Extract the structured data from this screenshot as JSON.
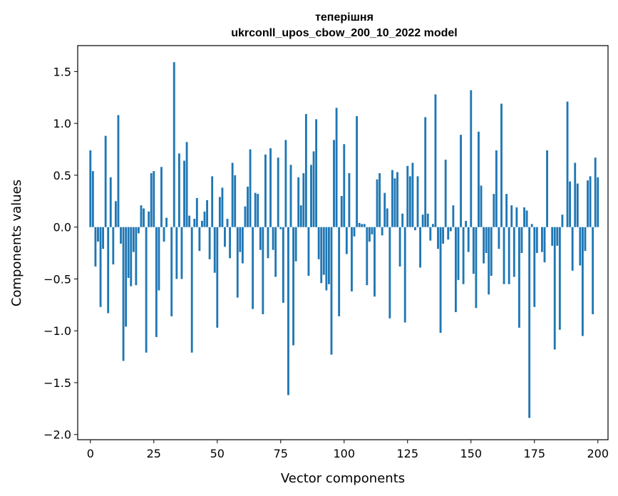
{
  "chart_data": {
    "type": "bar",
    "title": [
      "теперішня",
      "ukrconll_upos_cbow_200_10_2022 model"
    ],
    "xlabel": "Vector components",
    "ylabel": "Components values",
    "xlim": [
      -5,
      204
    ],
    "ylim": [
      -2.05,
      1.75
    ],
    "xticks": [
      0,
      25,
      50,
      75,
      100,
      125,
      150,
      175,
      200
    ],
    "yticks": [
      -2.0,
      -1.5,
      -1.0,
      -0.5,
      0.0,
      0.5,
      1.0,
      1.5
    ],
    "ytick_labels": [
      "−2.0",
      "−1.5",
      "−1.0",
      "−0.5",
      "0.0",
      "0.5",
      "1.0",
      "1.5"
    ],
    "bar_color": "#1f77b4",
    "values": [
      0.74,
      0.54,
      -0.38,
      -0.14,
      -0.77,
      -0.21,
      0.88,
      -0.83,
      0.48,
      -0.36,
      0.25,
      1.08,
      -0.16,
      -1.29,
      -0.96,
      -0.49,
      -0.57,
      -0.24,
      -0.56,
      -0.06,
      0.21,
      0.18,
      -1.21,
      0.15,
      0.52,
      0.54,
      -1.06,
      -0.61,
      0.58,
      -0.14,
      0.09,
      0.0,
      -0.86,
      1.59,
      -0.5,
      0.71,
      -0.5,
      0.64,
      0.82,
      0.11,
      -1.21,
      0.08,
      0.28,
      -0.23,
      0.06,
      0.15,
      0.26,
      -0.31,
      0.49,
      -0.44,
      -0.97,
      0.29,
      0.38,
      -0.19,
      0.08,
      -0.3,
      0.62,
      0.5,
      -0.68,
      -0.24,
      -0.35,
      0.2,
      0.39,
      0.75,
      -0.79,
      0.33,
      0.32,
      -0.22,
      -0.84,
      0.7,
      -0.3,
      0.76,
      -0.22,
      -0.48,
      0.67,
      -0.02,
      -0.73,
      0.84,
      -1.62,
      0.6,
      -1.14,
      -0.33,
      0.48,
      0.21,
      0.52,
      1.09,
      -0.47,
      0.6,
      0.73,
      1.04,
      -0.31,
      -0.54,
      -0.46,
      -0.61,
      -0.55,
      -1.23,
      0.84,
      1.15,
      -0.86,
      0.3,
      0.8,
      -0.26,
      0.52,
      -0.62,
      -0.09,
      1.07,
      0.04,
      0.03,
      0.03,
      -0.56,
      -0.14,
      -0.07,
      -0.67,
      0.46,
      0.52,
      -0.08,
      0.33,
      0.18,
      -0.88,
      0.55,
      0.47,
      0.53,
      -0.38,
      0.13,
      -0.92,
      0.59,
      0.49,
      0.62,
      -0.03,
      0.49,
      -0.39,
      0.12,
      1.06,
      0.13,
      -0.13,
      0.03,
      1.28,
      -0.21,
      -1.02,
      -0.16,
      0.65,
      -0.12,
      -0.04,
      0.21,
      -0.82,
      -0.51,
      0.89,
      -0.55,
      0.06,
      -0.24,
      1.32,
      -0.45,
      -0.78,
      0.92,
      0.4,
      -0.35,
      -0.25,
      -0.65,
      -0.47,
      0.32,
      0.74,
      -0.21,
      1.19,
      -0.55,
      0.32,
      -0.55,
      0.21,
      -0.48,
      0.19,
      -0.97,
      -0.25,
      0.19,
      0.16,
      -1.84,
      0.03,
      -0.77,
      -0.25,
      0.0,
      -0.24,
      -0.34,
      0.74,
      0.0,
      -0.18,
      -1.18,
      -0.18,
      -0.99,
      0.12,
      0.0,
      1.21,
      0.44,
      -0.42,
      0.62,
      0.42,
      -0.37,
      -1.05,
      -0.23,
      0.45,
      0.49,
      -0.84,
      0.67,
      0.48
    ]
  }
}
